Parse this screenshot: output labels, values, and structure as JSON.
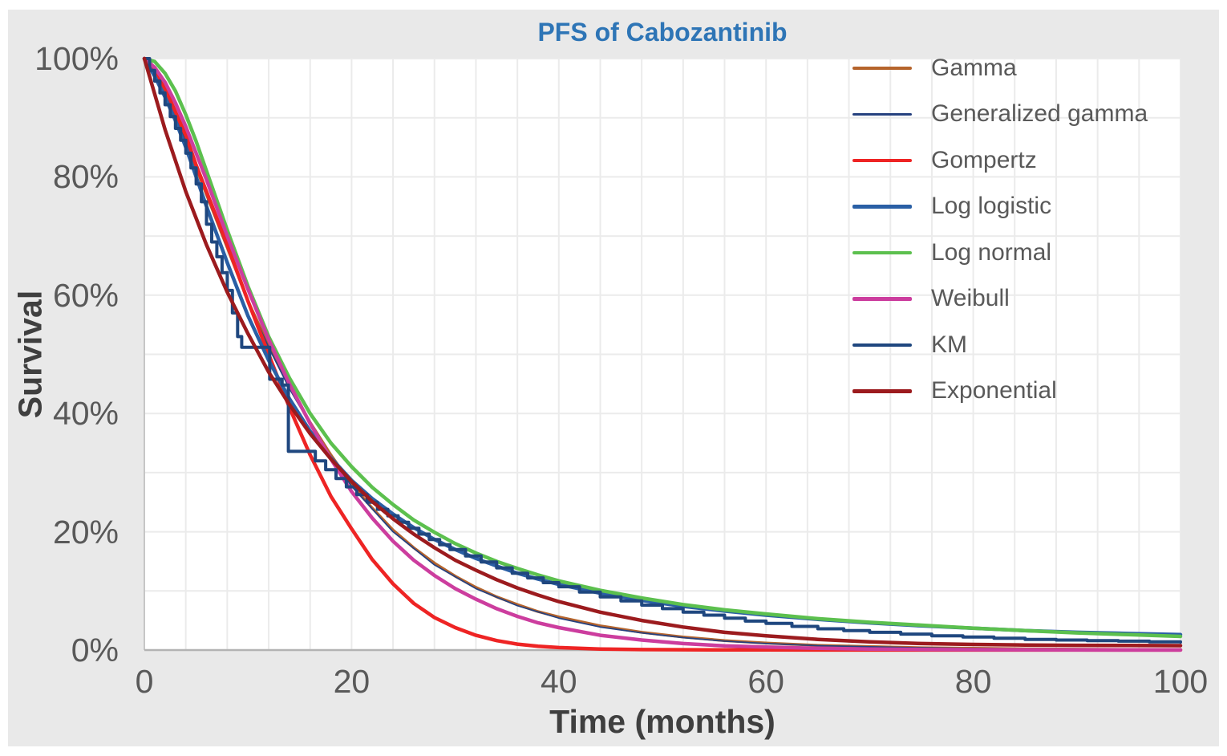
{
  "title": {
    "text": "PFS of Cabozantinib",
    "color": "#2e75b6"
  },
  "panel": {
    "background": "#e9e9e9",
    "plot_background": "#ffffff",
    "gridline_color": "#ebebeb",
    "axis_line_color": "#b3b3b3",
    "tick_text_color": "#595959",
    "axis_title_color": "#3f3f3f"
  },
  "chart_data": {
    "type": "line",
    "title": "PFS of Cabozantinib",
    "xlabel": "Time (months)",
    "ylabel": "Survival",
    "xlim": [
      0,
      100
    ],
    "ylim": [
      0,
      100
    ],
    "x_ticks": [
      0,
      20,
      40,
      60,
      80,
      100
    ],
    "y_ticks": [
      {
        "value": 100,
        "label": "100%"
      },
      {
        "value": 80,
        "label": "80%"
      },
      {
        "value": 60,
        "label": "60%"
      },
      {
        "value": 40,
        "label": "40%"
      },
      {
        "value": 20,
        "label": "20%"
      },
      {
        "value": 0,
        "label": "0%"
      }
    ],
    "x_minor_grid_unit": 4,
    "y_minor_grid_unit": 10,
    "grid": true,
    "legend_position": "inside-top-right",
    "y_unit": "%",
    "series": [
      {
        "name": "Gamma",
        "color": "#b5642c",
        "width": 3.5,
        "style": "smooth",
        "points": [
          [
            0,
            100
          ],
          [
            2,
            94
          ],
          [
            4,
            86
          ],
          [
            5,
            81.5
          ],
          [
            6,
            77
          ],
          [
            8,
            68
          ],
          [
            10,
            59
          ],
          [
            12,
            51.5
          ],
          [
            14,
            44.5
          ],
          [
            16,
            38.5
          ],
          [
            18,
            33
          ],
          [
            20,
            28
          ],
          [
            22,
            24
          ],
          [
            24,
            20.3
          ],
          [
            26,
            17.3
          ],
          [
            28,
            14.7
          ],
          [
            30,
            12.5
          ],
          [
            32,
            10.6
          ],
          [
            34,
            9
          ],
          [
            36,
            7.7
          ],
          [
            38,
            6.5
          ],
          [
            40,
            5.6
          ],
          [
            44,
            4.1
          ],
          [
            48,
            3
          ],
          [
            52,
            2.2
          ],
          [
            56,
            1.6
          ],
          [
            60,
            1.2
          ],
          [
            65,
            0.8
          ],
          [
            70,
            0.6
          ],
          [
            75,
            0.4
          ],
          [
            80,
            0.3
          ],
          [
            85,
            0.2
          ],
          [
            90,
            0.15
          ],
          [
            95,
            0.1
          ],
          [
            100,
            0.08
          ]
        ]
      },
      {
        "name": "Generalized gamma",
        "color": "#26417f",
        "width": 1.8,
        "style": "smooth",
        "points": [
          [
            0,
            100
          ],
          [
            2,
            94
          ],
          [
            4,
            86
          ],
          [
            6,
            77
          ],
          [
            8,
            68
          ],
          [
            10,
            58.8
          ],
          [
            12,
            51.2
          ],
          [
            14,
            44.2
          ],
          [
            16,
            38.2
          ],
          [
            18,
            32.7
          ],
          [
            20,
            27.7
          ],
          [
            24,
            20
          ],
          [
            28,
            14.4
          ],
          [
            32,
            10.4
          ],
          [
            36,
            7.5
          ],
          [
            40,
            5.4
          ],
          [
            44,
            3.9
          ],
          [
            48,
            2.9
          ],
          [
            52,
            2.1
          ],
          [
            56,
            1.5
          ],
          [
            60,
            1.1
          ],
          [
            65,
            0.75
          ],
          [
            70,
            0.55
          ],
          [
            75,
            0.38
          ],
          [
            80,
            0.27
          ],
          [
            85,
            0.19
          ],
          [
            90,
            0.13
          ],
          [
            95,
            0.09
          ],
          [
            100,
            0.07
          ]
        ]
      },
      {
        "name": "Gompertz",
        "color": "#ee2424",
        "width": 4.5,
        "style": "smooth",
        "points": [
          [
            0,
            100
          ],
          [
            2,
            95
          ],
          [
            4,
            87
          ],
          [
            5,
            82
          ],
          [
            6,
            77.5
          ],
          [
            8,
            68.5
          ],
          [
            10,
            59
          ],
          [
            12,
            50
          ],
          [
            14,
            41
          ],
          [
            16,
            33
          ],
          [
            18,
            26
          ],
          [
            20,
            20.5
          ],
          [
            22,
            15.3
          ],
          [
            24,
            11.2
          ],
          [
            26,
            7.9
          ],
          [
            28,
            5.5
          ],
          [
            30,
            3.8
          ],
          [
            32,
            2.5
          ],
          [
            34,
            1.6
          ],
          [
            36,
            1
          ],
          [
            38,
            0.65
          ],
          [
            40,
            0.42
          ],
          [
            44,
            0.18
          ],
          [
            48,
            0.08
          ],
          [
            55,
            0.04
          ],
          [
            60,
            0.03
          ],
          [
            80,
            0.02
          ],
          [
            100,
            0.02
          ]
        ]
      },
      {
        "name": "Log logistic",
        "color": "#2a5fa5",
        "width": 4.5,
        "style": "smooth",
        "points": [
          [
            0,
            100
          ],
          [
            1,
            97
          ],
          [
            2,
            93.5
          ],
          [
            3,
            89.5
          ],
          [
            4,
            85
          ],
          [
            5,
            80
          ],
          [
            6,
            75
          ],
          [
            8,
            65.5
          ],
          [
            10,
            56.5
          ],
          [
            12,
            49
          ],
          [
            14,
            42.5
          ],
          [
            16,
            37
          ],
          [
            18,
            32.5
          ],
          [
            20,
            28.7
          ],
          [
            22,
            25.6
          ],
          [
            24,
            23
          ],
          [
            26,
            20.7
          ],
          [
            28,
            18.7
          ],
          [
            30,
            17
          ],
          [
            32,
            15.5
          ],
          [
            34,
            14.2
          ],
          [
            36,
            13
          ],
          [
            38,
            12
          ],
          [
            40,
            11.1
          ],
          [
            44,
            9.6
          ],
          [
            48,
            8.4
          ],
          [
            52,
            7.4
          ],
          [
            56,
            6.6
          ],
          [
            60,
            5.9
          ],
          [
            65,
            5.2
          ],
          [
            70,
            4.6
          ],
          [
            75,
            4.1
          ],
          [
            80,
            3.7
          ],
          [
            85,
            3.3
          ],
          [
            90,
            3
          ],
          [
            95,
            2.8
          ],
          [
            100,
            2.6
          ]
        ]
      },
      {
        "name": "Log normal",
        "color": "#5cc04e",
        "width": 4.5,
        "style": "smooth",
        "points": [
          [
            0,
            100
          ],
          [
            1,
            99.5
          ],
          [
            2,
            97.5
          ],
          [
            3,
            94.5
          ],
          [
            4,
            90.5
          ],
          [
            5,
            86
          ],
          [
            6,
            81
          ],
          [
            8,
            71
          ],
          [
            10,
            61.5
          ],
          [
            12,
            53
          ],
          [
            14,
            46
          ],
          [
            16,
            40
          ],
          [
            18,
            35
          ],
          [
            20,
            31
          ],
          [
            22,
            27.5
          ],
          [
            24,
            24.6
          ],
          [
            26,
            22
          ],
          [
            28,
            19.9
          ],
          [
            30,
            18
          ],
          [
            32,
            16.4
          ],
          [
            34,
            15
          ],
          [
            36,
            13.8
          ],
          [
            38,
            12.7
          ],
          [
            40,
            11.7
          ],
          [
            44,
            10.1
          ],
          [
            48,
            8.8
          ],
          [
            52,
            7.7
          ],
          [
            56,
            6.8
          ],
          [
            60,
            6.1
          ],
          [
            65,
            5.3
          ],
          [
            70,
            4.7
          ],
          [
            75,
            4.2
          ],
          [
            80,
            3.7
          ],
          [
            85,
            3.3
          ],
          [
            90,
            2.9
          ],
          [
            95,
            2.6
          ],
          [
            100,
            2.3
          ]
        ]
      },
      {
        "name": "Weibull",
        "color": "#cc3d9e",
        "width": 4.5,
        "style": "smooth",
        "points": [
          [
            0,
            100
          ],
          [
            1,
            98.5
          ],
          [
            2,
            96
          ],
          [
            3,
            92.5
          ],
          [
            4,
            88.5
          ],
          [
            5,
            84
          ],
          [
            6,
            79.5
          ],
          [
            8,
            70
          ],
          [
            10,
            61
          ],
          [
            12,
            52.5
          ],
          [
            14,
            45
          ],
          [
            16,
            38.3
          ],
          [
            18,
            32.3
          ],
          [
            20,
            26.8
          ],
          [
            22,
            22.3
          ],
          [
            24,
            18.4
          ],
          [
            26,
            15.2
          ],
          [
            28,
            12.6
          ],
          [
            30,
            10.4
          ],
          [
            32,
            8.6
          ],
          [
            34,
            7
          ],
          [
            36,
            5.7
          ],
          [
            38,
            4.6
          ],
          [
            40,
            3.8
          ],
          [
            44,
            2.5
          ],
          [
            48,
            1.7
          ],
          [
            52,
            1.1
          ],
          [
            56,
            0.7
          ],
          [
            60,
            0.5
          ],
          [
            65,
            0.3
          ],
          [
            70,
            0.18
          ],
          [
            75,
            0.11
          ],
          [
            80,
            0.07
          ],
          [
            90,
            0.03
          ],
          [
            100,
            0.02
          ]
        ]
      },
      {
        "name": "KM",
        "color": "#1f477f",
        "width": 4,
        "style": "step",
        "points": [
          [
            0,
            100
          ],
          [
            0.5,
            98
          ],
          [
            1,
            96.2
          ],
          [
            1.5,
            94.2
          ],
          [
            2,
            92.2
          ],
          [
            2.5,
            90.2
          ],
          [
            3,
            88.2
          ],
          [
            3.5,
            86.2
          ],
          [
            4,
            84
          ],
          [
            4.5,
            81.5
          ],
          [
            5,
            78.8
          ],
          [
            5.5,
            75.8
          ],
          [
            6,
            72
          ],
          [
            6.5,
            69
          ],
          [
            7,
            66.5
          ],
          [
            7.5,
            63.8
          ],
          [
            8,
            60.8
          ],
          [
            8.5,
            57
          ],
          [
            9,
            53
          ],
          [
            9.4,
            51.2
          ],
          [
            12.1,
            45.8
          ],
          [
            13.3,
            44.8
          ],
          [
            13.9,
            33.6
          ],
          [
            16.5,
            32
          ],
          [
            17.5,
            30.5
          ],
          [
            18.5,
            29
          ],
          [
            19.5,
            27.6
          ],
          [
            20.5,
            26.3
          ],
          [
            21.5,
            25
          ],
          [
            22.5,
            23.8
          ],
          [
            23.5,
            22.7
          ],
          [
            24.5,
            21.6
          ],
          [
            25.5,
            20.6
          ],
          [
            26.5,
            19.6
          ],
          [
            27.5,
            18.7
          ],
          [
            28.5,
            17.8
          ],
          [
            29.5,
            17
          ],
          [
            31,
            15.9
          ],
          [
            32.5,
            14.9
          ],
          [
            34,
            13.9
          ],
          [
            35.5,
            13
          ],
          [
            37,
            12.2
          ],
          [
            38.5,
            11.4
          ],
          [
            40,
            10.7
          ],
          [
            42,
            9.8
          ],
          [
            44,
            9
          ],
          [
            46,
            8.3
          ],
          [
            48,
            7.6
          ],
          [
            50,
            7
          ],
          [
            52,
            6.4
          ],
          [
            54,
            5.9
          ],
          [
            56,
            5.4
          ],
          [
            58,
            4.9
          ],
          [
            60,
            4.5
          ],
          [
            62.5,
            4
          ],
          [
            65,
            3.6
          ],
          [
            67.5,
            3.3
          ],
          [
            70,
            3
          ],
          [
            73,
            2.7
          ],
          [
            76,
            2.4
          ],
          [
            79,
            2.2
          ],
          [
            82,
            2
          ],
          [
            85,
            1.8
          ],
          [
            88,
            1.7
          ],
          [
            91,
            1.6
          ],
          [
            94,
            1.5
          ],
          [
            97,
            1.4
          ],
          [
            100,
            1.35
          ]
        ]
      },
      {
        "name": "Exponential",
        "color": "#9c1b1e",
        "width": 4.5,
        "style": "smooth",
        "points": [
          [
            0,
            100
          ],
          [
            2,
            88
          ],
          [
            4,
            77.5
          ],
          [
            6,
            68.5
          ],
          [
            8,
            60.5
          ],
          [
            10,
            53.5
          ],
          [
            12,
            47
          ],
          [
            14,
            41.5
          ],
          [
            16,
            36.6
          ],
          [
            18,
            32.3
          ],
          [
            20,
            28.5
          ],
          [
            22,
            25.1
          ],
          [
            24,
            22.2
          ],
          [
            26,
            19.6
          ],
          [
            28,
            17.3
          ],
          [
            30,
            15.2
          ],
          [
            32,
            13.5
          ],
          [
            34,
            11.9
          ],
          [
            36,
            10.5
          ],
          [
            38,
            9.3
          ],
          [
            40,
            8.2
          ],
          [
            44,
            6.4
          ],
          [
            48,
            5
          ],
          [
            52,
            3.9
          ],
          [
            56,
            3
          ],
          [
            60,
            2.4
          ],
          [
            65,
            1.8
          ],
          [
            70,
            1.4
          ],
          [
            75,
            1.1
          ],
          [
            80,
            0.95
          ],
          [
            85,
            0.85
          ],
          [
            90,
            0.8
          ],
          [
            95,
            0.77
          ],
          [
            100,
            0.75
          ]
        ]
      }
    ]
  }
}
